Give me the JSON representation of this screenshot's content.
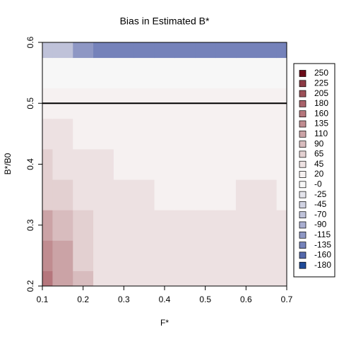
{
  "chart_data": {
    "type": "heatmap",
    "title": "Bias in Estimated B*",
    "xlabel": "F*",
    "ylabel": "B*/B0",
    "x": [
      0.1,
      0.15,
      0.2,
      0.25,
      0.3,
      0.35,
      0.4,
      0.45,
      0.5,
      0.55,
      0.6,
      0.65,
      0.7
    ],
    "y": [
      0.2,
      0.25,
      0.3,
      0.35,
      0.4,
      0.45,
      0.5,
      0.55,
      0.6
    ],
    "z": [
      [
        160,
        120,
        80,
        50,
        45,
        45,
        45,
        40,
        40,
        40,
        40,
        40,
        40
      ],
      [
        130,
        100,
        70,
        50,
        45,
        45,
        40,
        35,
        35,
        35,
        40,
        45,
        40
      ],
      [
        100,
        80,
        60,
        45,
        40,
        40,
        35,
        35,
        35,
        40,
        45,
        45,
        40
      ],
      [
        75,
        60,
        50,
        40,
        35,
        35,
        30,
        30,
        30,
        30,
        35,
        35,
        30
      ],
      [
        55,
        45,
        40,
        35,
        30,
        25,
        20,
        20,
        20,
        25,
        25,
        25,
        25
      ],
      [
        40,
        35,
        30,
        30,
        25,
        25,
        20,
        20,
        20,
        20,
        20,
        20,
        20
      ],
      [
        20,
        15,
        15,
        15,
        15,
        15,
        15,
        15,
        15,
        15,
        15,
        15,
        15
      ],
      [
        5,
        5,
        0,
        0,
        0,
        0,
        0,
        0,
        0,
        0,
        0,
        0,
        0
      ],
      [
        -60,
        -70,
        -110,
        -130,
        -135,
        -135,
        -135,
        -135,
        -135,
        -135,
        -135,
        -135,
        -135
      ]
    ],
    "levels": [
      250,
      225,
      205,
      180,
      160,
      135,
      110,
      90,
      65,
      45,
      20,
      {
        "value": 0,
        "label": "-0"
      },
      -25,
      -45,
      -70,
      -90,
      -115,
      -135,
      -160,
      -180
    ],
    "colors": [
      "#6b0d1a",
      "#8c3a45",
      "#9c5058",
      "#a8626a",
      "#b5767c",
      "#c08c90",
      "#cba3a6",
      "#d8bcbe",
      "#e3d0d1",
      "#ede1e2",
      "#f6f1f1",
      "#f7f7f7",
      "#e4e4ec",
      "#d0d2e2",
      "#bfc2d9",
      "#a9aed0",
      "#8e97c4",
      "#7582ba",
      "#5468ab",
      "#1f4a98"
    ],
    "hline": 0.5,
    "xlim": [
      0.1,
      0.7
    ],
    "ylim": [
      0.2,
      0.6
    ],
    "xticks": [
      0.1,
      0.2,
      0.3,
      0.4,
      0.5,
      0.6,
      0.7
    ],
    "yticks": [
      0.2,
      0.3,
      0.4,
      0.5,
      0.6
    ]
  }
}
